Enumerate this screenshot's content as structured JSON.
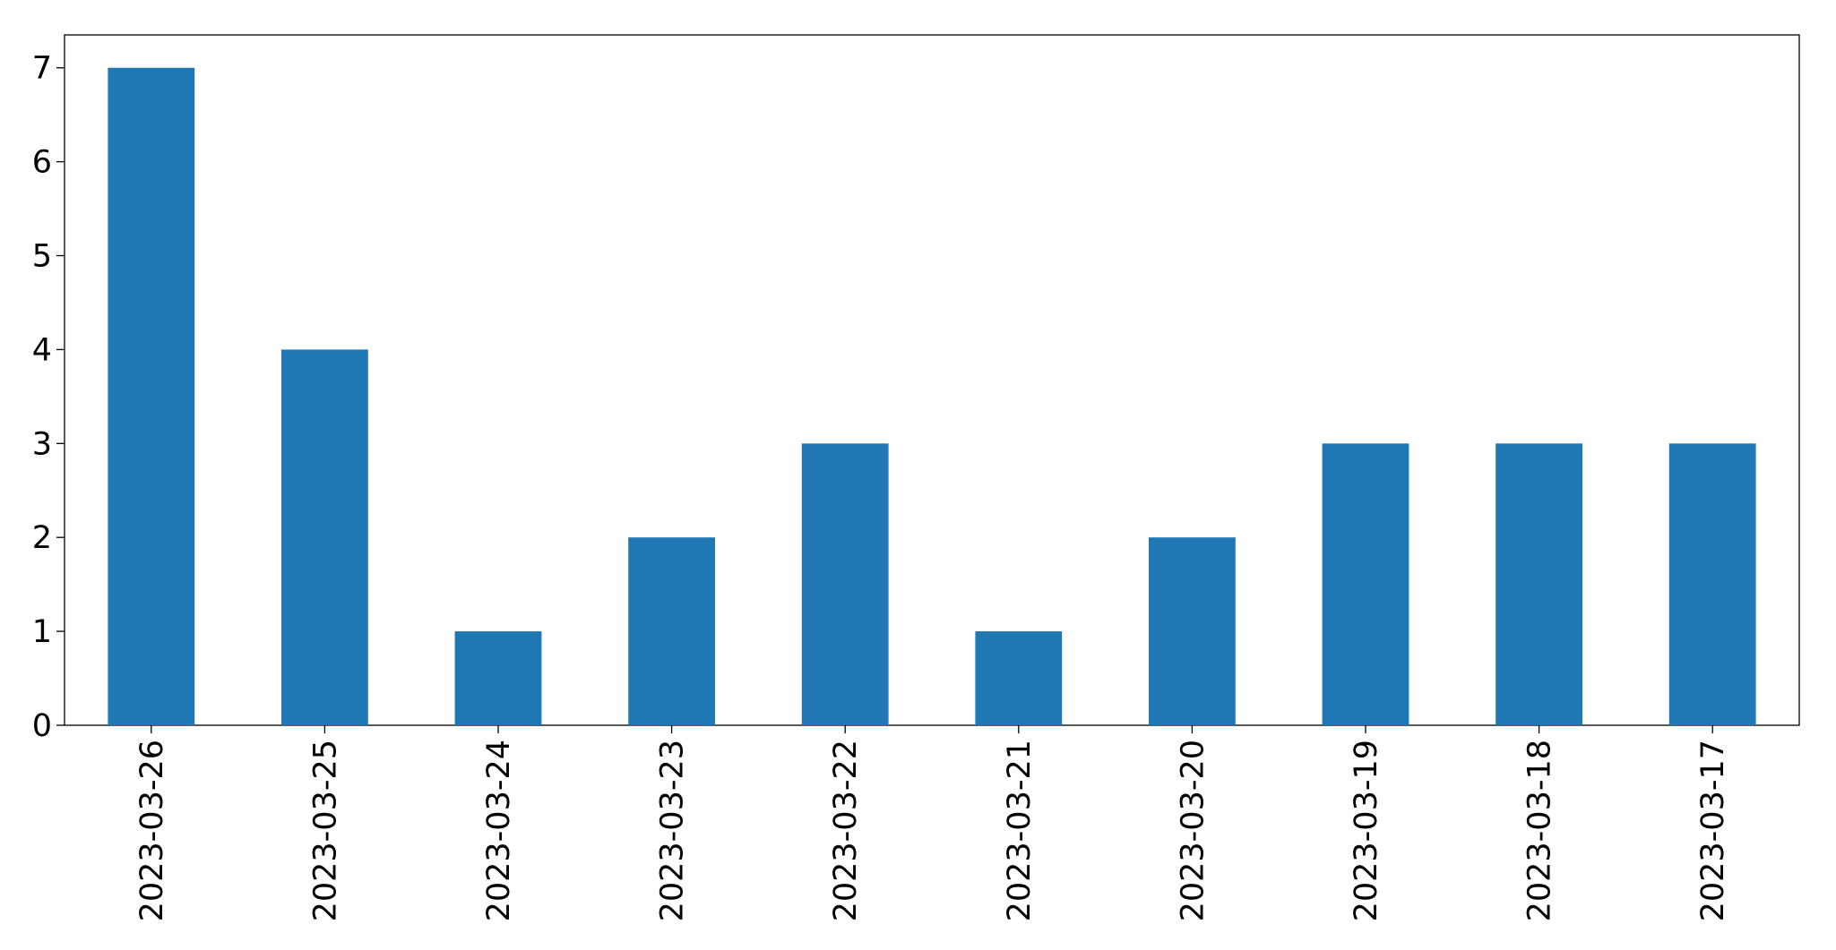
{
  "chart_data": {
    "type": "bar",
    "categories": [
      "2023-03-26",
      "2023-03-25",
      "2023-03-24",
      "2023-03-23",
      "2023-03-22",
      "2023-03-21",
      "2023-03-20",
      "2023-03-19",
      "2023-03-18",
      "2023-03-17"
    ],
    "values": [
      7,
      4,
      1,
      2,
      3,
      1,
      2,
      3,
      3,
      3
    ],
    "color": "#1f77b4",
    "ylim": [
      0,
      7.35
    ],
    "yticks": [
      0,
      1,
      2,
      3,
      4,
      5,
      6,
      7
    ],
    "grid": false
  }
}
